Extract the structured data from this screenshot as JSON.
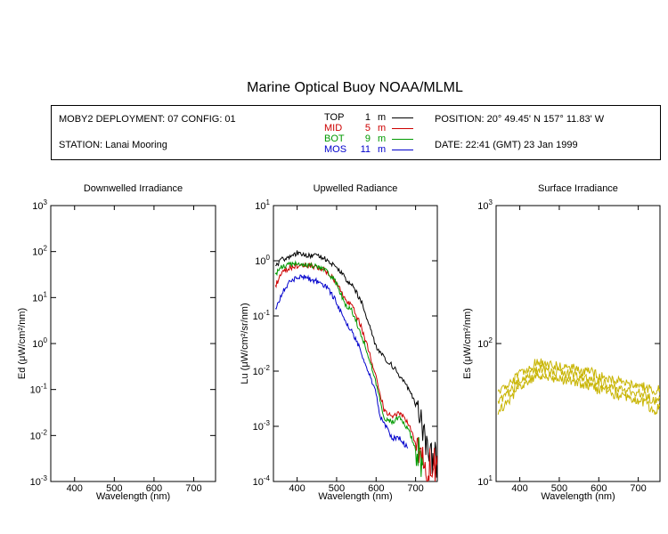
{
  "header": {
    "title": "Marine Optical Buoy NOAA/MLML",
    "deployment": "MOBY2 DEPLOYMENT: 07 CONFIG: 01",
    "station": "STATION: Lanai Mooring",
    "position": "POSITION: 20° 49.45' N   157° 11.83' W",
    "date": "DATE: 22:41 (GMT) 23 Jan 1999"
  },
  "legend": [
    {
      "label": "TOP",
      "depth": "1",
      "unit": "m",
      "color": "#000000"
    },
    {
      "label": "MID",
      "depth": "5",
      "unit": "m",
      "color": "#cc0000"
    },
    {
      "label": "BOT",
      "depth": "9",
      "unit": "m",
      "color": "#009900"
    },
    {
      "label": "MOS",
      "depth": "11",
      "unit": "m",
      "color": "#0000cc"
    }
  ],
  "chart_data": [
    {
      "type": "line",
      "title": "Downwelled Irradiance",
      "xlabel": "Wavelength (nm)",
      "ylabel": "Ed  (μW/cm²/nm)",
      "xlim": [
        340,
        755
      ],
      "ylim": [
        0.001,
        1000
      ],
      "yscale": "log",
      "xticks": [
        400,
        500,
        600,
        700
      ],
      "yticks": [
        0.001,
        0.01,
        0.1,
        1,
        10,
        100,
        1000
      ],
      "series": []
    },
    {
      "type": "line",
      "title": "Upwelled Radiance",
      "xlabel": "Wavelength (nm)",
      "ylabel": "Lu  (μW/cm²/sr/nm)",
      "xlim": [
        340,
        755
      ],
      "ylim": [
        0.0001,
        10
      ],
      "yscale": "log",
      "xticks": [
        400,
        500,
        600,
        700
      ],
      "yticks": [
        0.0001,
        0.001,
        0.01,
        0.1,
        1,
        10
      ],
      "series": [
        {
          "color": "#000000",
          "x": [
            345,
            360,
            380,
            400,
            420,
            440,
            460,
            480,
            500,
            520,
            540,
            560,
            580,
            600,
            620,
            640,
            660,
            680,
            700,
            720,
            740,
            755
          ],
          "y": [
            0.8,
            1.05,
            1.2,
            1.4,
            1.3,
            1.25,
            1.2,
            1.0,
            0.75,
            0.5,
            0.35,
            0.2,
            0.08,
            0.028,
            0.017,
            0.013,
            0.008,
            0.005,
            0.0025,
            0.0008,
            0.0003,
            0.0002
          ]
        },
        {
          "color": "#cc0000",
          "x": [
            345,
            360,
            380,
            400,
            420,
            440,
            460,
            480,
            500,
            520,
            540,
            560,
            580,
            600,
            620,
            640,
            660,
            680,
            700,
            720,
            740,
            755
          ],
          "y": [
            0.35,
            0.6,
            0.75,
            0.8,
            0.85,
            0.8,
            0.75,
            0.6,
            0.4,
            0.2,
            0.15,
            0.07,
            0.025,
            0.008,
            0.002,
            0.0015,
            0.0018,
            0.0012,
            0.0005,
            0.0002,
            0.0002,
            0.0002
          ]
        },
        {
          "color": "#009900",
          "x": [
            345,
            360,
            380,
            400,
            420,
            440,
            460,
            480,
            500,
            520,
            540,
            560,
            580,
            600,
            620,
            640,
            660,
            680,
            700,
            720
          ],
          "y": [
            0.55,
            0.8,
            0.85,
            0.9,
            0.85,
            0.8,
            0.75,
            0.6,
            0.38,
            0.17,
            0.12,
            0.05,
            0.02,
            0.006,
            0.0014,
            0.0012,
            0.0015,
            0.0009,
            0.0004,
            0.0002
          ]
        },
        {
          "color": "#0000cc",
          "x": [
            345,
            360,
            380,
            400,
            420,
            440,
            460,
            480,
            500,
            520,
            540,
            560,
            580,
            600,
            610,
            620,
            640,
            660,
            680
          ],
          "y": [
            0.13,
            0.25,
            0.4,
            0.5,
            0.5,
            0.45,
            0.4,
            0.3,
            0.18,
            0.08,
            0.05,
            0.025,
            0.01,
            0.004,
            0.0015,
            0.0012,
            0.0006,
            0.0006,
            0.0004
          ]
        }
      ]
    },
    {
      "type": "line",
      "title": "Surface Irradiance",
      "xlabel": "Wavelength (nm)",
      "ylabel": "Es  (μW/cm²/nm)",
      "xlim": [
        340,
        755
      ],
      "ylim": [
        10,
        1000
      ],
      "yscale": "log",
      "xticks": [
        400,
        500,
        600,
        700
      ],
      "yticks": [
        10,
        100,
        1000
      ],
      "series": [
        {
          "color": "#c8b400",
          "x": [
            345,
            360,
            380,
            400,
            420,
            440,
            460,
            480,
            500,
            520,
            540,
            560,
            580,
            600,
            620,
            640,
            660,
            680,
            700,
            720,
            740,
            755
          ],
          "y": [
            45,
            50,
            52,
            62,
            66,
            72,
            72,
            70,
            68,
            67,
            66,
            63,
            62,
            58,
            56,
            54,
            52,
            51,
            50,
            48,
            45,
            47
          ]
        },
        {
          "color": "#c8b400",
          "x": [
            345,
            360,
            380,
            400,
            420,
            440,
            460,
            480,
            500,
            520,
            540,
            560,
            580,
            600,
            620,
            640,
            660,
            680,
            700,
            720,
            740,
            755
          ],
          "y": [
            38,
            42,
            46,
            55,
            59,
            64,
            65,
            63,
            62,
            60,
            59,
            56,
            55,
            52,
            50,
            48,
            46,
            45,
            44,
            42,
            38,
            40
          ]
        },
        {
          "color": "#c8b400",
          "x": [
            345,
            360,
            380,
            400,
            420,
            440,
            460,
            480,
            500,
            520,
            540,
            560,
            580,
            600,
            620,
            640,
            660,
            680,
            700,
            720,
            740,
            755
          ],
          "y": [
            30,
            36,
            40,
            50,
            53,
            58,
            59,
            57,
            55,
            54,
            53,
            50,
            49,
            46,
            45,
            43,
            41,
            40,
            39,
            37,
            32,
            35
          ]
        }
      ]
    }
  ]
}
